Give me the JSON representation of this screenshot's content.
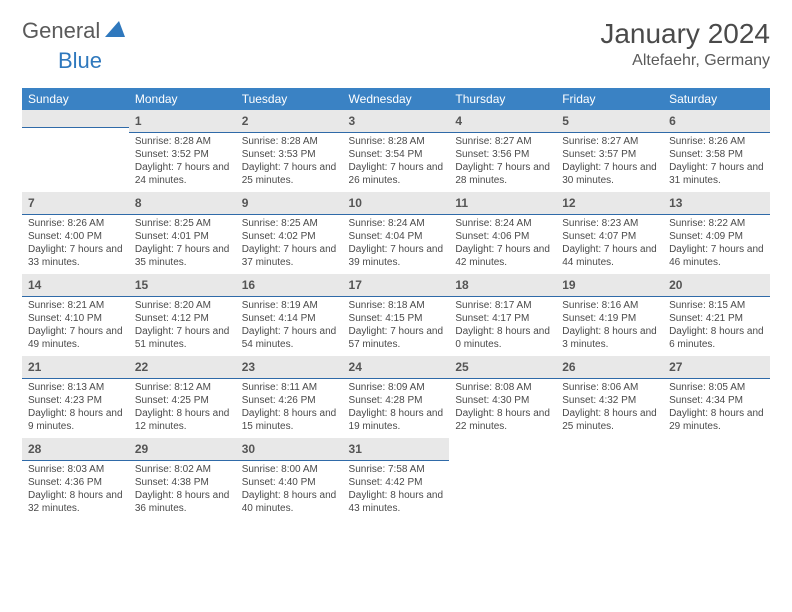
{
  "logo": {
    "text1": "General",
    "text2": "Blue"
  },
  "title": "January 2024",
  "location": "Altefaehr, Germany",
  "weekdays": [
    "Sunday",
    "Monday",
    "Tuesday",
    "Wednesday",
    "Thursday",
    "Friday",
    "Saturday"
  ],
  "colors": {
    "header_bg": "#3a82c4",
    "header_text": "#ffffff",
    "daybar_bg": "#e8e8e8",
    "daybar_border": "#2f6aa8",
    "logo_gray": "#5a5a5a",
    "logo_blue": "#2f78bd"
  },
  "weeks": [
    [
      null,
      {
        "n": "1",
        "sunrise": "8:28 AM",
        "sunset": "3:52 PM",
        "daylight": "7 hours and 24 minutes."
      },
      {
        "n": "2",
        "sunrise": "8:28 AM",
        "sunset": "3:53 PM",
        "daylight": "7 hours and 25 minutes."
      },
      {
        "n": "3",
        "sunrise": "8:28 AM",
        "sunset": "3:54 PM",
        "daylight": "7 hours and 26 minutes."
      },
      {
        "n": "4",
        "sunrise": "8:27 AM",
        "sunset": "3:56 PM",
        "daylight": "7 hours and 28 minutes."
      },
      {
        "n": "5",
        "sunrise": "8:27 AM",
        "sunset": "3:57 PM",
        "daylight": "7 hours and 30 minutes."
      },
      {
        "n": "6",
        "sunrise": "8:26 AM",
        "sunset": "3:58 PM",
        "daylight": "7 hours and 31 minutes."
      }
    ],
    [
      {
        "n": "7",
        "sunrise": "8:26 AM",
        "sunset": "4:00 PM",
        "daylight": "7 hours and 33 minutes."
      },
      {
        "n": "8",
        "sunrise": "8:25 AM",
        "sunset": "4:01 PM",
        "daylight": "7 hours and 35 minutes."
      },
      {
        "n": "9",
        "sunrise": "8:25 AM",
        "sunset": "4:02 PM",
        "daylight": "7 hours and 37 minutes."
      },
      {
        "n": "10",
        "sunrise": "8:24 AM",
        "sunset": "4:04 PM",
        "daylight": "7 hours and 39 minutes."
      },
      {
        "n": "11",
        "sunrise": "8:24 AM",
        "sunset": "4:06 PM",
        "daylight": "7 hours and 42 minutes."
      },
      {
        "n": "12",
        "sunrise": "8:23 AM",
        "sunset": "4:07 PM",
        "daylight": "7 hours and 44 minutes."
      },
      {
        "n": "13",
        "sunrise": "8:22 AM",
        "sunset": "4:09 PM",
        "daylight": "7 hours and 46 minutes."
      }
    ],
    [
      {
        "n": "14",
        "sunrise": "8:21 AM",
        "sunset": "4:10 PM",
        "daylight": "7 hours and 49 minutes."
      },
      {
        "n": "15",
        "sunrise": "8:20 AM",
        "sunset": "4:12 PM",
        "daylight": "7 hours and 51 minutes."
      },
      {
        "n": "16",
        "sunrise": "8:19 AM",
        "sunset": "4:14 PM",
        "daylight": "7 hours and 54 minutes."
      },
      {
        "n": "17",
        "sunrise": "8:18 AM",
        "sunset": "4:15 PM",
        "daylight": "7 hours and 57 minutes."
      },
      {
        "n": "18",
        "sunrise": "8:17 AM",
        "sunset": "4:17 PM",
        "daylight": "8 hours and 0 minutes."
      },
      {
        "n": "19",
        "sunrise": "8:16 AM",
        "sunset": "4:19 PM",
        "daylight": "8 hours and 3 minutes."
      },
      {
        "n": "20",
        "sunrise": "8:15 AM",
        "sunset": "4:21 PM",
        "daylight": "8 hours and 6 minutes."
      }
    ],
    [
      {
        "n": "21",
        "sunrise": "8:13 AM",
        "sunset": "4:23 PM",
        "daylight": "8 hours and 9 minutes."
      },
      {
        "n": "22",
        "sunrise": "8:12 AM",
        "sunset": "4:25 PM",
        "daylight": "8 hours and 12 minutes."
      },
      {
        "n": "23",
        "sunrise": "8:11 AM",
        "sunset": "4:26 PM",
        "daylight": "8 hours and 15 minutes."
      },
      {
        "n": "24",
        "sunrise": "8:09 AM",
        "sunset": "4:28 PM",
        "daylight": "8 hours and 19 minutes."
      },
      {
        "n": "25",
        "sunrise": "8:08 AM",
        "sunset": "4:30 PM",
        "daylight": "8 hours and 22 minutes."
      },
      {
        "n": "26",
        "sunrise": "8:06 AM",
        "sunset": "4:32 PM",
        "daylight": "8 hours and 25 minutes."
      },
      {
        "n": "27",
        "sunrise": "8:05 AM",
        "sunset": "4:34 PM",
        "daylight": "8 hours and 29 minutes."
      }
    ],
    [
      {
        "n": "28",
        "sunrise": "8:03 AM",
        "sunset": "4:36 PM",
        "daylight": "8 hours and 32 minutes."
      },
      {
        "n": "29",
        "sunrise": "8:02 AM",
        "sunset": "4:38 PM",
        "daylight": "8 hours and 36 minutes."
      },
      {
        "n": "30",
        "sunrise": "8:00 AM",
        "sunset": "4:40 PM",
        "daylight": "8 hours and 40 minutes."
      },
      {
        "n": "31",
        "sunrise": "7:58 AM",
        "sunset": "4:42 PM",
        "daylight": "8 hours and 43 minutes."
      },
      null,
      null,
      null
    ]
  ]
}
